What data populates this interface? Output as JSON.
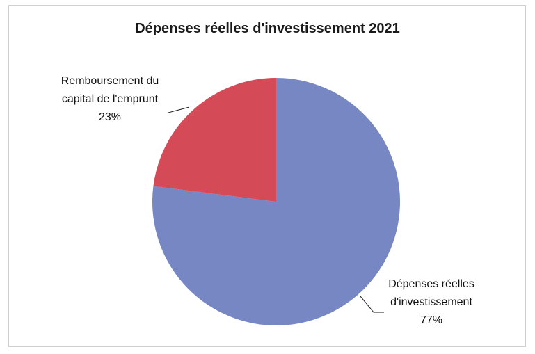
{
  "chart_data": {
    "type": "pie",
    "title": "Dépenses réelles d'investissement 2021",
    "slices": [
      {
        "label_lines": [
          "Dépenses réelles",
          "d'investissement"
        ],
        "percent_label": "77%",
        "value": 77,
        "color": "#7787c4"
      },
      {
        "label_lines": [
          "Remboursement du",
          "capital de l'emprunt"
        ],
        "percent_label": "23%",
        "value": 23,
        "color": "#d54a57"
      }
    ],
    "legend": "none"
  }
}
